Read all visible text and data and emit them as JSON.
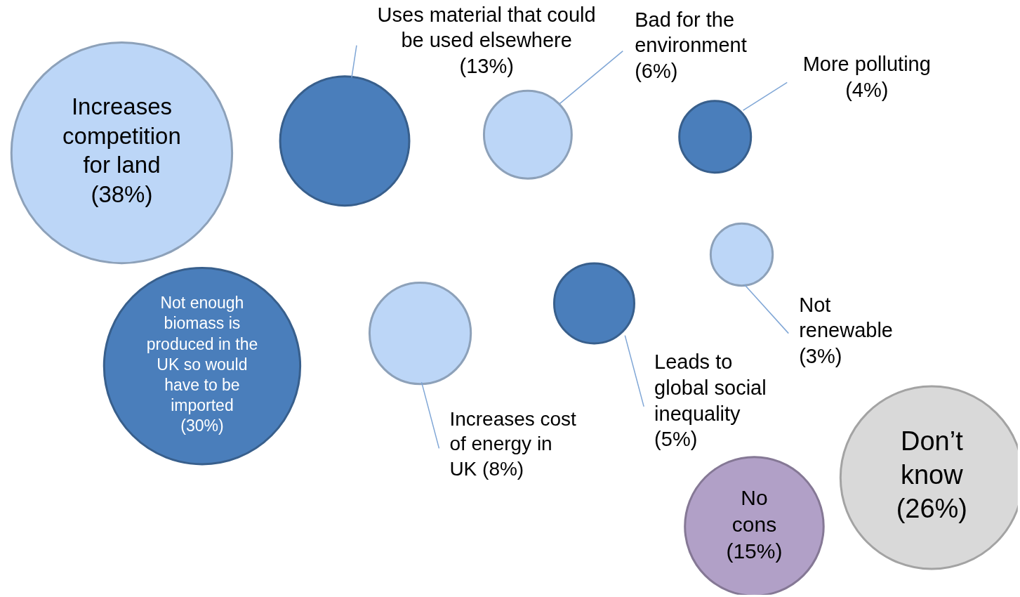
{
  "chart_data": {
    "type": "other",
    "categories": [
      "Increases competition for land",
      "Not enough biomass is produced in the UK so would have to be imported",
      "Uses material that could be used elsewhere",
      "Increases cost of energy in UK",
      "Bad for the environment",
      "Leads to global social inequality",
      "More polluting",
      "Not renewable",
      "No cons",
      "Don’t know"
    ],
    "values": [
      38,
      30,
      13,
      8,
      6,
      5,
      4,
      3,
      15,
      26
    ],
    "value_labels": [
      "(38%)",
      "(30%)",
      "(13%)",
      "(8%)",
      "(6%)",
      "(5%)",
      "(4%)",
      "(3%)",
      "(15%)",
      "(26%)"
    ],
    "colors": [
      "#bcd6f7",
      "#4a7ebb",
      "#4a7ebb",
      "#bcd6f7",
      "#bcd6f7",
      "#4a7ebb",
      "#4a7ebb",
      "#bcd6f7",
      "#b1a0c7",
      "#d9d9d9"
    ]
  }
}
